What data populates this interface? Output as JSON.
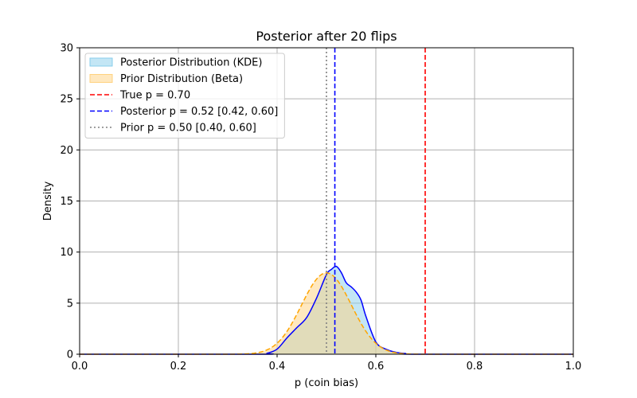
{
  "chart_data": {
    "type": "area",
    "title": "Posterior after 20 flips",
    "xlabel": "p (coin bias)",
    "ylabel": "Density",
    "xlim": [
      0.0,
      1.0
    ],
    "ylim": [
      0,
      30
    ],
    "xticks": [
      "0.0",
      "0.2",
      "0.4",
      "0.6",
      "0.8",
      "1.0"
    ],
    "yticks": [
      "0",
      "5",
      "10",
      "15",
      "20",
      "25",
      "30"
    ],
    "grid": true,
    "legend_position": "upper-left",
    "series": [
      {
        "name": "Posterior Distribution (KDE)",
        "kind": "kde",
        "line_color": "#0000ff",
        "fill_color": "#87ceeb",
        "x": [
          0.36,
          0.38,
          0.4,
          0.42,
          0.44,
          0.46,
          0.48,
          0.5,
          0.51,
          0.52,
          0.53,
          0.54,
          0.55,
          0.56,
          0.57,
          0.58,
          0.6,
          0.62,
          0.64,
          0.66,
          0.68
        ],
        "y": [
          0.0,
          0.1,
          0.5,
          1.6,
          2.6,
          3.6,
          5.5,
          7.8,
          8.3,
          8.6,
          8.0,
          7.0,
          6.6,
          6.1,
          5.3,
          3.7,
          1.2,
          0.5,
          0.2,
          0.07,
          0.0
        ]
      },
      {
        "name": "Prior Distribution (Beta)",
        "kind": "beta",
        "alpha": 50,
        "beta": 50,
        "line_color": "#ffa500",
        "fill_color": "#ffd27f"
      }
    ],
    "vlines": [
      {
        "name": "True p = 0.70",
        "x": 0.7,
        "color": "#ff0000",
        "style": "dashed"
      },
      {
        "name": "Posterior p = 0.52 [0.42, 0.60]",
        "x": 0.517,
        "color": "#0000ff",
        "style": "dashed"
      },
      {
        "name": "Prior p = 0.50 [0.40, 0.60]",
        "x": 0.5,
        "color": "#808080",
        "style": "dotted"
      }
    ]
  }
}
